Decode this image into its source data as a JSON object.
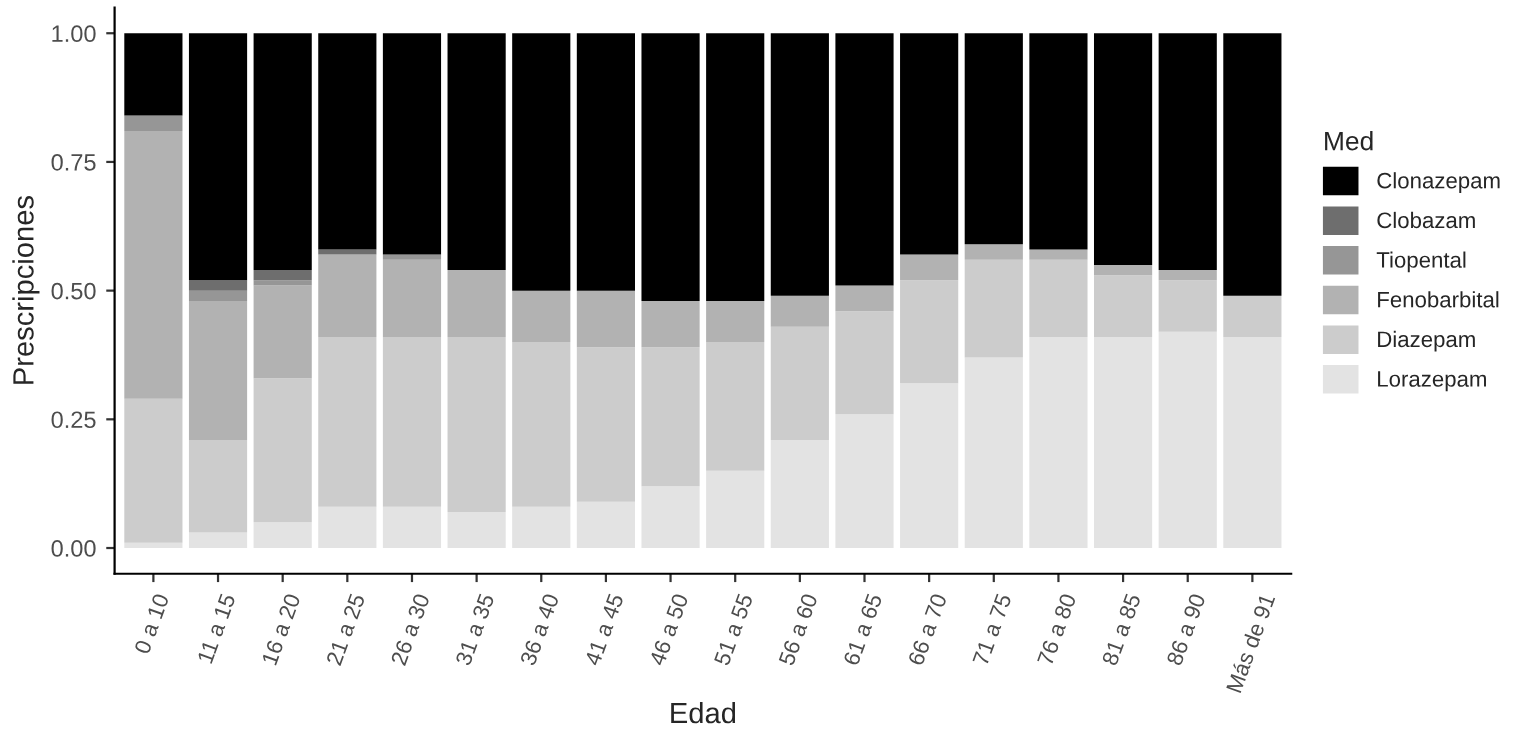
{
  "chart_data": {
    "type": "bar",
    "stacked": true,
    "xlabel": "Edad",
    "ylabel": "Prescripciones",
    "legend_title": "Med",
    "legend": "right",
    "grid": false,
    "categories": [
      "0 a 10",
      "11 a 15",
      "16 a 20",
      "21 a 25",
      "26 a 30",
      "31 a 35",
      "36 a 40",
      "41 a 45",
      "46 a 50",
      "51 a 55",
      "56 a 60",
      "61 a 65",
      "66 a 70",
      "71 a 75",
      "76 a 80",
      "81 a 85",
      "86 a 90",
      "Más de 91"
    ],
    "ylim": [
      -0.05,
      1.05
    ],
    "yticks": [
      {
        "value": 0,
        "label": "0.00"
      },
      {
        "value": 0.25,
        "label": "0.25"
      },
      {
        "value": 0.5,
        "label": "0.50"
      },
      {
        "value": 0.75,
        "label": "0.75"
      },
      {
        "value": 1,
        "label": "1.00"
      }
    ],
    "series": [
      {
        "name": "Lorazepam",
        "color": "#e3e3e3",
        "values": [
          0.01,
          0.03,
          0.05,
          0.08,
          0.08,
          0.07,
          0.08,
          0.09,
          0.12,
          0.15,
          0.21,
          0.26,
          0.32,
          0.37,
          0.41,
          0.41,
          0.42,
          0.41
        ]
      },
      {
        "name": "Diazepam",
        "color": "#cccccc",
        "values": [
          0.28,
          0.18,
          0.28,
          0.33,
          0.33,
          0.34,
          0.32,
          0.3,
          0.27,
          0.25,
          0.22,
          0.2,
          0.2,
          0.19,
          0.15,
          0.12,
          0.1,
          0.08
        ]
      },
      {
        "name": "Fenobarbital",
        "color": "#b2b2b2",
        "values": [
          0.52,
          0.27,
          0.18,
          0.16,
          0.15,
          0.13,
          0.1,
          0.11,
          0.09,
          0.08,
          0.06,
          0.05,
          0.05,
          0.03,
          0.02,
          0.02,
          0.02,
          0
        ]
      },
      {
        "name": "Tiopental",
        "color": "#969696",
        "values": [
          0.03,
          0.02,
          0.01,
          0,
          0.01,
          0,
          0,
          0,
          0,
          0,
          0,
          0,
          0,
          0,
          0,
          0,
          0,
          0
        ]
      },
      {
        "name": "Clobazam",
        "color": "#6e6e6e",
        "values": [
          0,
          0.02,
          0.02,
          0.01,
          0,
          0,
          0,
          0,
          0,
          0,
          0,
          0,
          0,
          0,
          0,
          0,
          0,
          0
        ]
      },
      {
        "name": "Clonazepam",
        "color": "#000000",
        "values": [
          0.16,
          0.48,
          0.46,
          0.42,
          0.43,
          0.46,
          0.5,
          0.5,
          0.52,
          0.52,
          0.51,
          0.49,
          0.43,
          0.41,
          0.42,
          0.45,
          0.46,
          0.51
        ]
      }
    ]
  }
}
